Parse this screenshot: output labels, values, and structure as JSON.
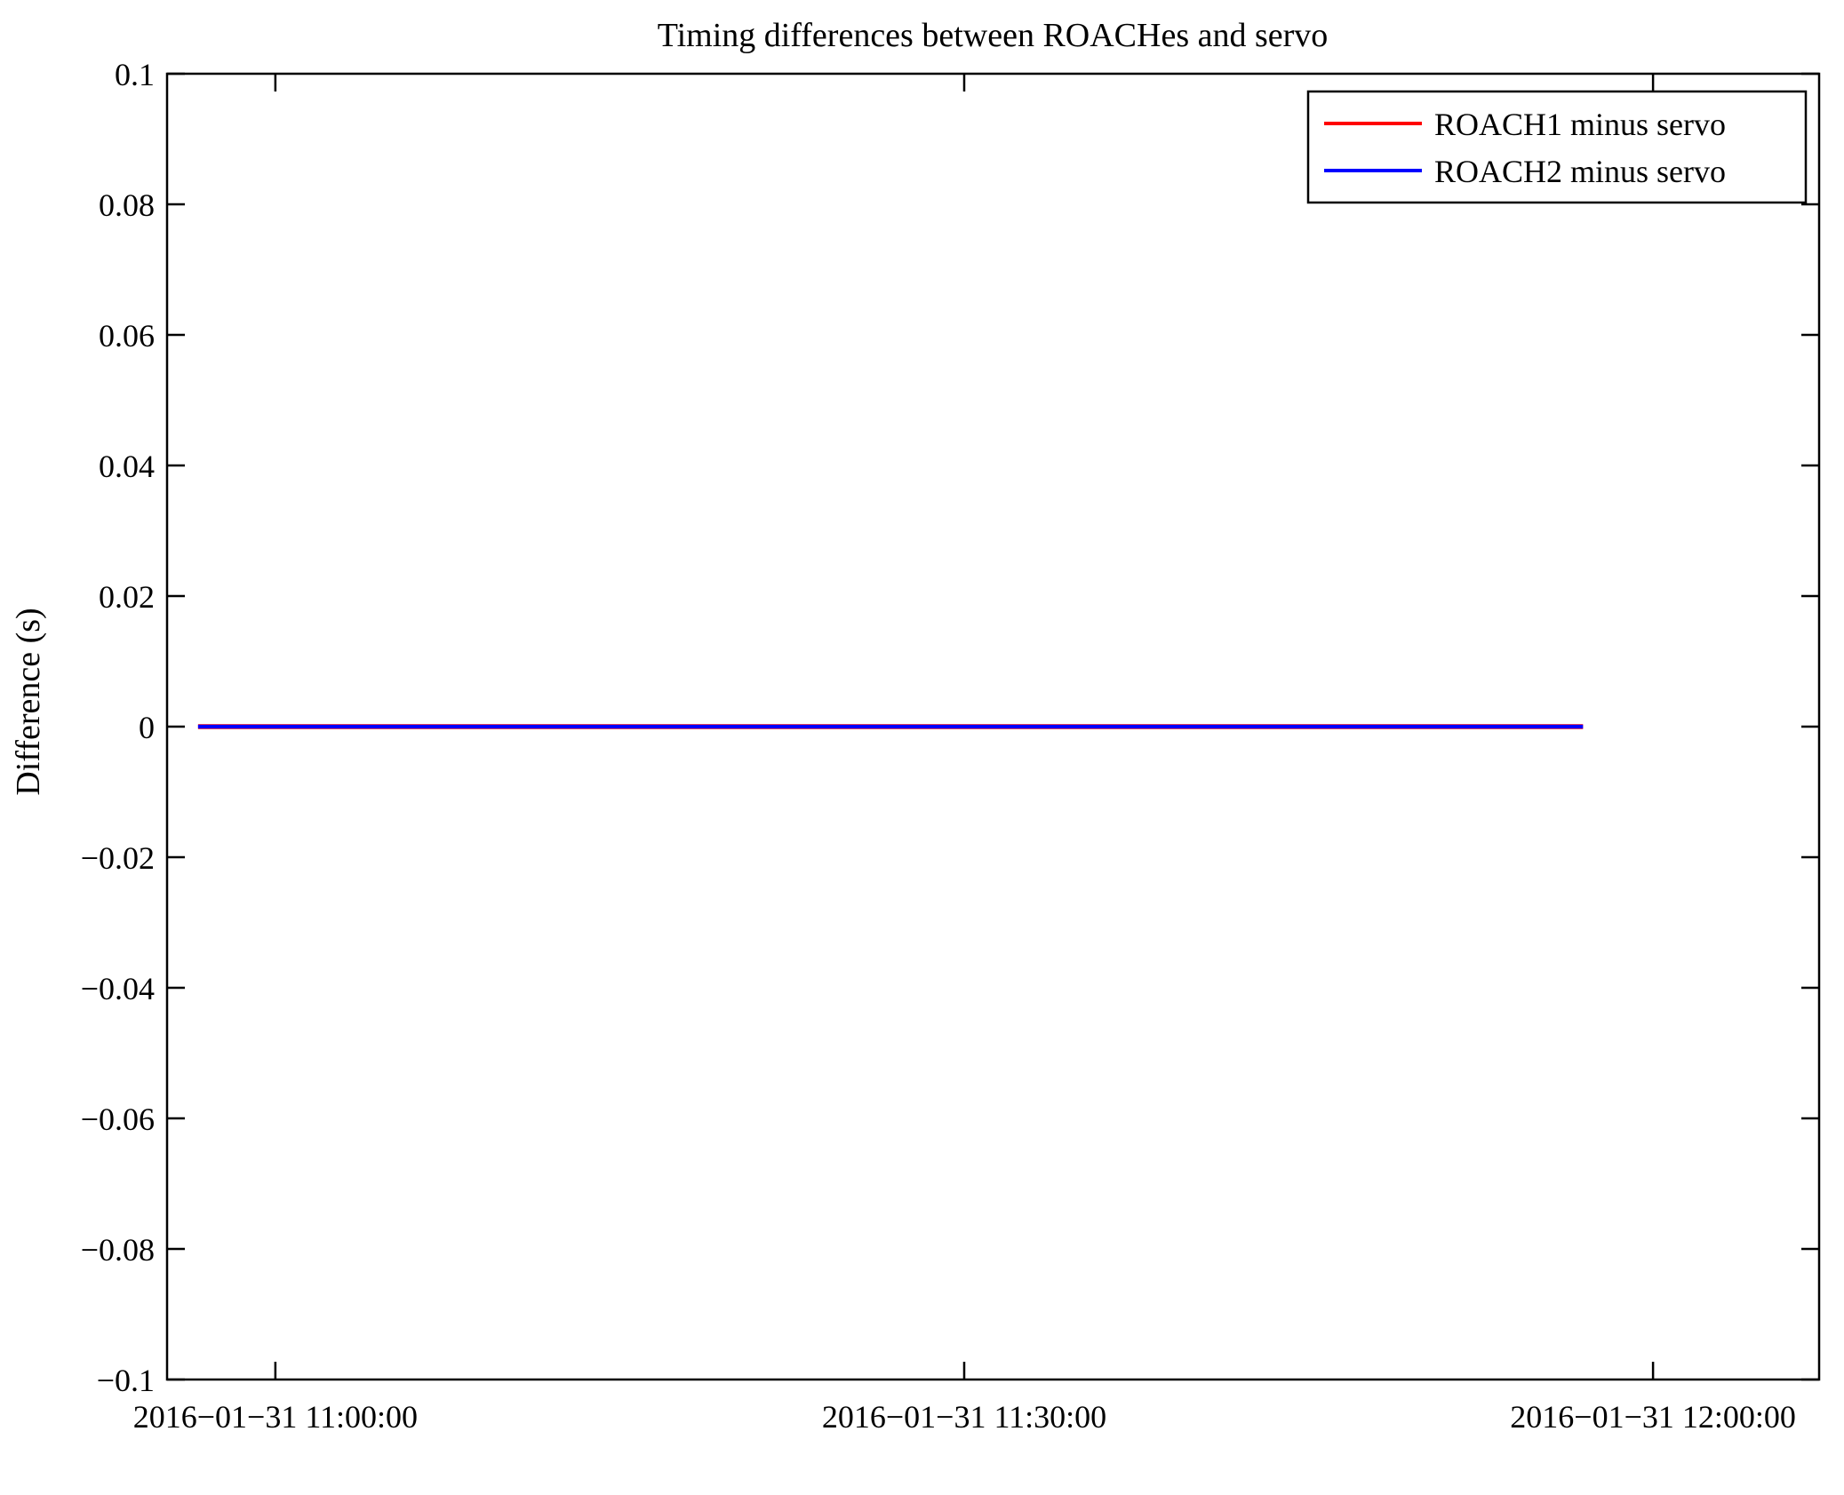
{
  "figure": {
    "background_color": "#ffffff",
    "axis_color": "#000000"
  },
  "chart_data": {
    "type": "line",
    "title": "Timing differences between ROACHes and servo",
    "xlabel": "",
    "ylabel": "Difference (s)",
    "ylim": [
      -0.1,
      0.1
    ],
    "grid": false,
    "y_axis": {
      "tick_values": [
        0.1,
        0.08,
        0.06,
        0.04,
        0.02,
        0,
        -0.02,
        -0.04,
        -0.06,
        -0.08,
        -0.1
      ],
      "tick_labels": [
        "0.1",
        "0.08",
        "0.06",
        "0.04",
        "0.02",
        "0",
        "−0.02",
        "−0.04",
        "−0.06",
        "−0.08",
        "−0.1"
      ]
    },
    "x_axis": {
      "tick_labels": [
        "2016−01−31 11:00:00",
        "2016−01−31 11:30:00",
        "2016−01−31 12:00:00"
      ],
      "tick_times": [
        "11:00:00",
        "11:30:00",
        "12:00:00"
      ],
      "range_times": [
        "10:55:17",
        "12:07:14"
      ]
    },
    "series": [
      {
        "name": "ROACH1 minus servo",
        "color": "#ff0000",
        "y_value": 0.0,
        "x_start": "10:56:38",
        "x_end": "11:56:57",
        "description": "constant horizontal line at zero, hidden beneath ROACH2 line"
      },
      {
        "name": "ROACH2 minus servo",
        "color": "#0000ff",
        "y_value": 0.0,
        "x_start": "10:56:38",
        "x_end": "11:56:57",
        "description": "constant horizontal line at zero, drawn on top of ROACH1 line"
      }
    ],
    "legend": {
      "position": "upper right",
      "border_color": "#000000",
      "background_color": "#ffffff"
    }
  }
}
